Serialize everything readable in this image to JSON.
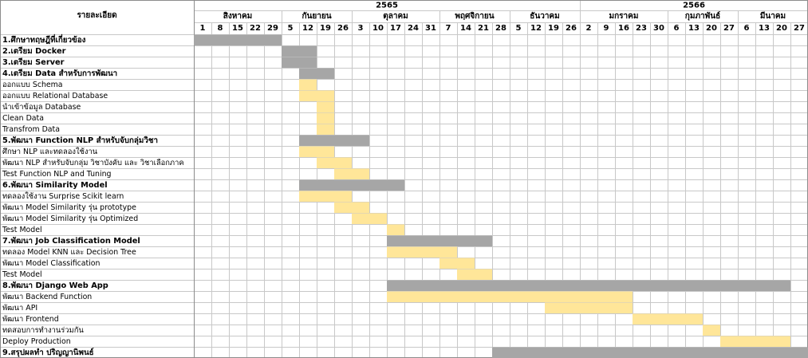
{
  "chart_data": {
    "type": "gantt",
    "header_label": "รายละเอียด",
    "years": [
      {
        "label": "2565",
        "start": 0,
        "span": 22
      },
      {
        "label": "2566",
        "start": 22,
        "span": 13
      }
    ],
    "months": [
      {
        "label": "สิงหาคม",
        "start": 0,
        "span": 5
      },
      {
        "label": "กันยายน",
        "start": 5,
        "span": 4
      },
      {
        "label": "ตุลาคม",
        "start": 9,
        "span": 5
      },
      {
        "label": "พฤศจิกายน",
        "start": 14,
        "span": 4
      },
      {
        "label": "ธันวาคม",
        "start": 18,
        "span": 4
      },
      {
        "label": "มกราคม",
        "start": 22,
        "span": 5
      },
      {
        "label": "กุมภาพันธ์",
        "start": 27,
        "span": 4
      },
      {
        "label": "มีนาคม",
        "start": 31,
        "span": 4
      }
    ],
    "days": [
      "1",
      "8",
      "15",
      "22",
      "29",
      "5",
      "12",
      "19",
      "26",
      "3",
      "10",
      "17",
      "24",
      "31",
      "7",
      "14",
      "21",
      "28",
      "5",
      "12",
      "19",
      "26",
      "2",
      "9",
      "16",
      "23",
      "30",
      "6",
      "13",
      "20",
      "27",
      "6",
      "13",
      "20",
      "27"
    ],
    "colors": {
      "phase": "#a6a6a6",
      "task": "#ffe699",
      "grid": "#c8c8c8",
      "border": "#8c8c8c"
    },
    "tasks": [
      {
        "label": "1.ศึกษาทฤษฎีที่เกี่ยวข้อง",
        "bold": true,
        "kind": "phase",
        "start": 0,
        "end": 5
      },
      {
        "label": "2.เตรียม Docker",
        "bold": true,
        "kind": "phase",
        "start": 5,
        "end": 7
      },
      {
        "label": "3.เตรียม Server",
        "bold": true,
        "kind": "phase",
        "start": 5,
        "end": 7
      },
      {
        "label": "4.เตรียม Data สำหรับการพัฒนา",
        "bold": true,
        "kind": "phase",
        "start": 6,
        "end": 8
      },
      {
        "label": "ออกแบบ Schema",
        "bold": false,
        "kind": "task",
        "start": 6,
        "end": 7
      },
      {
        "label": "ออกแบบ Relational Database",
        "bold": false,
        "kind": "task",
        "start": 6,
        "end": 8
      },
      {
        "label": "นำเข้าข้อมูล Database",
        "bold": false,
        "kind": "task",
        "start": 7,
        "end": 8
      },
      {
        "label": "Clean Data",
        "bold": false,
        "kind": "task",
        "start": 7,
        "end": 8
      },
      {
        "label": "Transfrom Data",
        "bold": false,
        "kind": "task",
        "start": 7,
        "end": 8
      },
      {
        "label": "5.พัฒนา Function NLP สำหรับจับกลุ่มวิชา",
        "bold": true,
        "kind": "phase",
        "start": 6,
        "end": 10
      },
      {
        "label": "ศึกษา NLP และทดลองใช้งาน",
        "bold": false,
        "kind": "task",
        "start": 6,
        "end": 8
      },
      {
        "label": "พัฒนา NLP สำหรับจับกลุ่ม วิชาบังคับ และ วิชาเลือกภาค",
        "bold": false,
        "kind": "task",
        "start": 7,
        "end": 9
      },
      {
        "label": "Test Function NLP and Tuning",
        "bold": false,
        "kind": "task",
        "start": 8,
        "end": 10
      },
      {
        "label": "6.พัฒนา Similarity Model",
        "bold": true,
        "kind": "phase",
        "start": 6,
        "end": 12
      },
      {
        "label": "ทดลองใช้งาน Surprise Scikit learn",
        "bold": false,
        "kind": "task",
        "start": 6,
        "end": 9
      },
      {
        "label": "พัฒนา Model Similarity รุ่น prototype",
        "bold": false,
        "kind": "task",
        "start": 8,
        "end": 10
      },
      {
        "label": "พัฒนา Model Similarity รุ่น Optimized",
        "bold": false,
        "kind": "task",
        "start": 9,
        "end": 11
      },
      {
        "label": "Test Model",
        "bold": false,
        "kind": "task",
        "start": 11,
        "end": 12
      },
      {
        "label": "7.พัฒนา Job Classification Model",
        "bold": true,
        "kind": "phase",
        "start": 11,
        "end": 17
      },
      {
        "label": "ทดลอง Model KNN และ Decision Tree",
        "bold": false,
        "kind": "task",
        "start": 11,
        "end": 15
      },
      {
        "label": "พัฒนา Model Classification",
        "bold": false,
        "kind": "task",
        "start": 14,
        "end": 16
      },
      {
        "label": "Test Model",
        "bold": false,
        "kind": "task",
        "start": 15,
        "end": 17
      },
      {
        "label": "8.พัฒนา Django Web App",
        "bold": true,
        "kind": "phase",
        "start": 11,
        "end": 34
      },
      {
        "label": "พัฒนา Backend Function",
        "bold": false,
        "kind": "task",
        "start": 11,
        "end": 25
      },
      {
        "label": "พัฒนา API",
        "bold": false,
        "kind": "task",
        "start": 20,
        "end": 25
      },
      {
        "label": "พัฒนา Frontend",
        "bold": false,
        "kind": "task",
        "start": 25,
        "end": 29
      },
      {
        "label": "ทดสอบการทำงานร่วมกัน",
        "bold": false,
        "kind": "task",
        "start": 29,
        "end": 30
      },
      {
        "label": "Deploy Production",
        "bold": false,
        "kind": "task",
        "start": 30,
        "end": 34
      },
      {
        "label": "9.สรุปผลทำ ปริญญานิพนธ์",
        "bold": true,
        "kind": "phase",
        "start": 17,
        "end": 35
      }
    ]
  }
}
